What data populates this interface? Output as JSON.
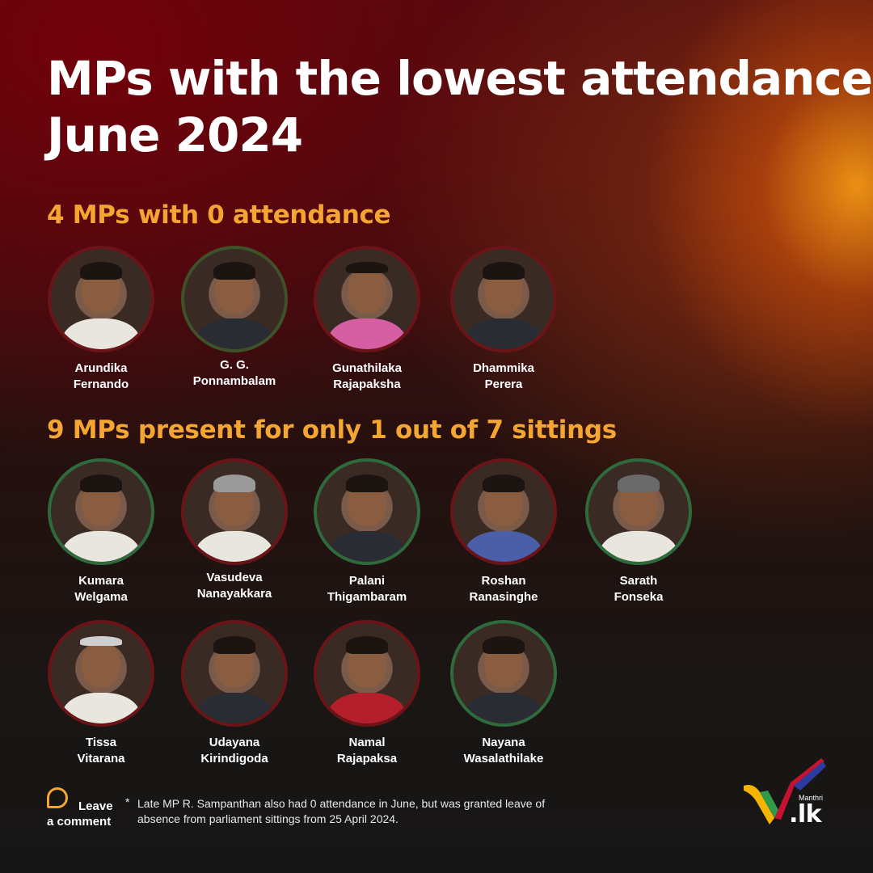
{
  "title": {
    "line1": "MPs with the lowest attendance",
    "line2": "June 2024"
  },
  "section_zero": {
    "heading": "4 MPs with 0 attendance",
    "mps": [
      {
        "first": "Arundika",
        "last": "Fernando",
        "ring": "#6a1418"
      },
      {
        "first": "G. G.",
        "last": "Ponnambalam",
        "ring": "#3f5128"
      },
      {
        "first": "Gunathilaka",
        "last": "Rajapaksha",
        "ring": "#6a1418"
      },
      {
        "first": "Dhammika",
        "last": "Perera",
        "ring": "#6a1418"
      }
    ]
  },
  "section_one": {
    "heading": "9 MPs present for only 1 out of 7 sittings",
    "mps": [
      {
        "first": "Kumara",
        "last": "Welgama",
        "ring": "#2f6a3c"
      },
      {
        "first": "Vasudeva",
        "last": "Nanayakkara",
        "ring": "#6a1418"
      },
      {
        "first": "Palani",
        "last": "Thigambaram",
        "ring": "#2f6a3c"
      },
      {
        "first": "Roshan",
        "last": "Ranasinghe",
        "ring": "#6a1418"
      },
      {
        "first": "Sarath",
        "last": "Fonseka",
        "ring": "#2f6a3c"
      },
      {
        "first": "Tissa",
        "last": "Vitarana",
        "ring": "#6a1418"
      },
      {
        "first": "Udayana",
        "last": "Kirindigoda",
        "ring": "#6a1418"
      },
      {
        "first": "Namal",
        "last": "Rajapaksa",
        "ring": "#6a1418"
      },
      {
        "first": "Nayana",
        "last": "Wasalathilake",
        "ring": "#2f6a3c"
      }
    ]
  },
  "comment": {
    "icon": "speech-bubble-icon",
    "line1": "Leave",
    "line2": "a comment"
  },
  "footnote": {
    "marker": "*",
    "text": "Late MP R. Sampanthan also had 0 attendance in June, but was granted leave of absence from parliament sittings from 25 April 2024."
  },
  "logo": {
    "small": "Manthri",
    "main": ".lk"
  },
  "colors": {
    "accent": "#f5a531",
    "ring_red": "#6a1418",
    "ring_green": "#2f6a3c",
    "ring_olive": "#3f5128"
  }
}
